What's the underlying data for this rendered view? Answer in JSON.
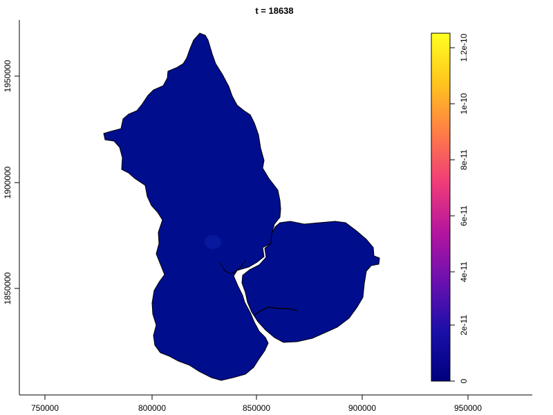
{
  "map": {
    "title": "t = 18638",
    "x_ticks": [
      "750000",
      "800000",
      "850000",
      "900000",
      "950000"
    ],
    "y_ticks": [
      "1850000",
      "1900000",
      "1950000"
    ],
    "colors": {
      "fill_main": "#000e8e",
      "fill_highlight": "#0a1da3",
      "outline": "#000000",
      "background": "#ffffff"
    }
  },
  "legend": {
    "ticks": [
      "0",
      "2e-11",
      "4e-11",
      "6e-11",
      "8e-11",
      "1e-10",
      "1.2e-10"
    ],
    "scale_min": 0,
    "scale_max": 1.25e-10,
    "gradient_colors": [
      "#00007f",
      "#1a0fa8",
      "#6a10b0",
      "#b5159f",
      "#f03c78",
      "#ff7d46",
      "#ffc51e",
      "#ffff20"
    ]
  }
}
